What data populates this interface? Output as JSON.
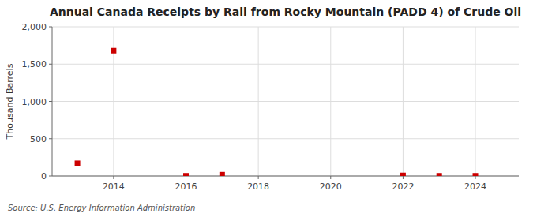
{
  "chart_data": {
    "type": "scatter",
    "title": "Annual Canada Receipts by Rail from Rocky Mountain (PADD 4) of Crude Oil",
    "ylabel": "Thousand Barrels",
    "annotations": [
      "Source: U.S. Energy Information Administration"
    ],
    "x": [
      2013,
      2014,
      2016,
      2017,
      2022,
      2023,
      2024
    ],
    "values": [
      170,
      1680,
      3,
      18,
      8,
      3,
      3
    ],
    "color": "#cc0000",
    "marker": "square",
    "xlim": [
      2012.3,
      2025.2
    ],
    "xticks": [
      2014,
      2016,
      2018,
      2020,
      2022,
      2024
    ],
    "ylim": [
      0,
      2000
    ],
    "yticks": [
      0,
      500,
      {
        "value": 1000,
        "label": "1,000"
      },
      {
        "value": 1500,
        "label": "1,500"
      },
      {
        "value": 2000,
        "label": "2,000"
      }
    ],
    "grid": true
  }
}
